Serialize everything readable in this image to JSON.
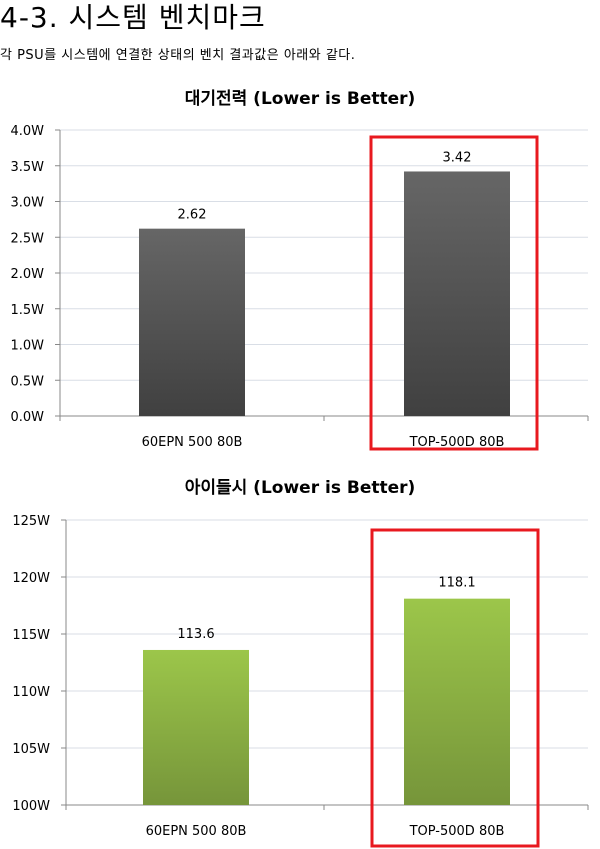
{
  "section_title": "4-3. 시스템 벤치마크",
  "intro_text": "각 PSU를 시스템에 연결한 상태의 벤치 결과값은 아래와 같다.",
  "colors": {
    "bar_dark_top": "#666666",
    "bar_dark_bottom": "#404040",
    "bar_green_top": "#9cc64a",
    "bar_green_bottom": "#76953a",
    "highlight": "#e8191f",
    "grid": "#d9dee6"
  },
  "chart_data": [
    {
      "type": "bar",
      "title": "대기전력 (Lower is Better)",
      "categories": [
        "60EPN 500 80B",
        "TOP-500D 80B"
      ],
      "values": [
        2.62,
        3.42
      ],
      "data_labels": [
        "2.62",
        "3.42"
      ],
      "yticks": [
        "0.0W",
        "0.5W",
        "1.0W",
        "1.5W",
        "2.0W",
        "2.5W",
        "3.0W",
        "3.5W",
        "4.0W"
      ],
      "ylim": [
        0,
        4
      ],
      "grid": true,
      "legend": "none",
      "highlighted_category": "TOP-500D 80B"
    },
    {
      "type": "bar",
      "title": "아이들시 (Lower is Better)",
      "categories": [
        "60EPN 500 80B",
        "TOP-500D 80B"
      ],
      "values": [
        113.6,
        118.1
      ],
      "data_labels": [
        "113.6",
        "118.1"
      ],
      "yticks": [
        "100W",
        "105W",
        "110W",
        "115W",
        "120W",
        "125W"
      ],
      "ylim": [
        100,
        125
      ],
      "grid": true,
      "legend": "none",
      "highlighted_category": "TOP-500D 80B"
    }
  ]
}
